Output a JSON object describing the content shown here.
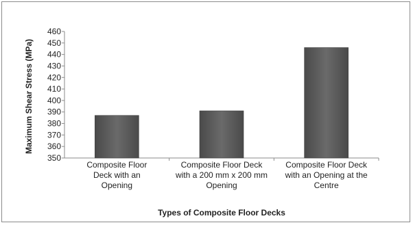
{
  "chart_data": {
    "type": "bar",
    "categories": [
      [
        "Composite Floor",
        "Deck with an",
        "Opening"
      ],
      [
        "Composite Floor Deck",
        "with a 200 mm x 200 mm",
        "Opening"
      ],
      [
        "Composite Floor Deck",
        "with an Opening at the",
        "Centre"
      ]
    ],
    "values": [
      387,
      391,
      446
    ],
    "ylim": [
      350,
      460
    ],
    "yticks": [
      350,
      360,
      370,
      380,
      390,
      400,
      410,
      420,
      430,
      440,
      450,
      460
    ],
    "xlabel": "Types of Composite Floor Decks",
    "ylabel": "Maximum Shear Stress (MPa)",
    "grid": false,
    "bar_color": "#595959"
  }
}
